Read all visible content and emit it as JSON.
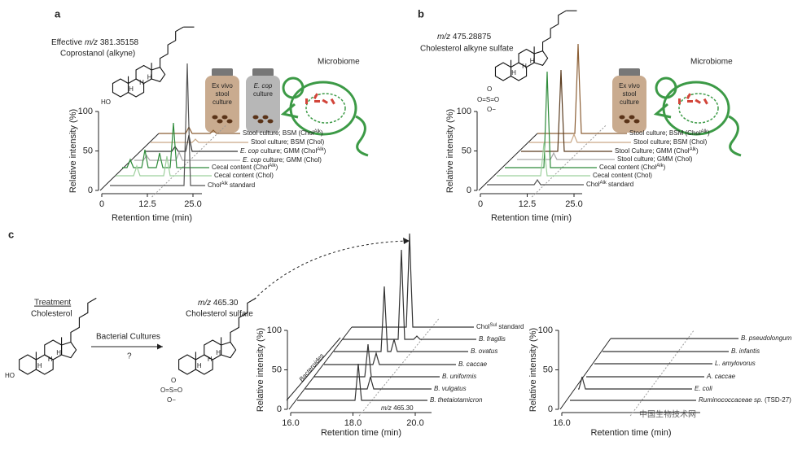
{
  "panel_labels": [
    "a",
    "b",
    "c"
  ],
  "chart_data": [
    {
      "type": "waterfall",
      "title": [
        "Effective ",
        "m/z",
        " 381.35158"
      ],
      "subtitle": "Coprostanol (alkyne)",
      "ylabel": "Relative intensity (%)",
      "xlabel": "Retention time (min)",
      "ylim": [
        0,
        100
      ],
      "xlim": [
        0,
        25
      ],
      "yticks": [
        0,
        50,
        100
      ],
      "xticks": [
        0,
        12.5,
        {
          "value": 25,
          "label": "25.0"
        }
      ],
      "series": [
        {
          "name": [
            {
              "t": "Stool culture; BSM (Chol"
            },
            {
              "t": "Alk",
              "sup": true
            },
            {
              "t": ")"
            }
          ],
          "color": "#8b5e34"
        },
        {
          "name": [
            {
              "t": "Stool culture; BSM (Chol)"
            }
          ],
          "color": "#c9a887"
        },
        {
          "name": [
            {
              "t": "E. cop",
              "i": true
            },
            {
              "t": " culture; GMM (Chol"
            },
            {
              "t": "Alk",
              "sup": true
            },
            {
              "t": ")"
            }
          ],
          "color": "#333333"
        },
        {
          "name": [
            {
              "t": "E. cop",
              "i": true
            },
            {
              "t": " culture; GMM (Chol)"
            }
          ],
          "color": "#a8a8a8"
        },
        {
          "name": [
            {
              "t": "Cecal content (Chol"
            },
            {
              "t": "Alk",
              "sup": true
            },
            {
              "t": ")"
            }
          ],
          "color": "#2e8b3a"
        },
        {
          "name": [
            {
              "t": "Cecal content (Chol)"
            }
          ],
          "color": "#9dd09d"
        },
        {
          "name": [
            {
              "t": "Chol"
            },
            {
              "t": "Alk",
              "sup": true
            },
            {
              "t": " standard"
            }
          ],
          "color": "#555555"
        }
      ]
    },
    {
      "type": "waterfall",
      "title": [
        "",
        "m/z",
        " 475.28875"
      ],
      "subtitle": "Cholesterol alkyne sulfate",
      "ylabel": "Relative intensity (%)",
      "xlabel": "Retention time (min)",
      "ylim": [
        0,
        100
      ],
      "xlim": [
        0,
        25
      ],
      "yticks": [
        0,
        50,
        100
      ],
      "xticks": [
        0,
        12.5,
        {
          "value": 25,
          "label": "25.0"
        }
      ],
      "series": [
        {
          "name": [
            {
              "t": "Stool culture; BSM (Chol"
            },
            {
              "t": "Alk",
              "sup": true
            },
            {
              "t": ")"
            }
          ],
          "color": "#8b5e34"
        },
        {
          "name": [
            {
              "t": "Stool culture; BSM (Chol)"
            }
          ],
          "color": "#c9a887"
        },
        {
          "name": [
            {
              "t": "Stool Culture; GMM (Chol"
            },
            {
              "t": "Alk",
              "sup": true
            },
            {
              "t": ")"
            }
          ],
          "color": "#5a3b1e"
        },
        {
          "name": [
            {
              "t": "Stool culture; GMM (Chol)"
            }
          ],
          "color": "#a8a8a8"
        },
        {
          "name": [
            {
              "t": "Cecal content (Chol"
            },
            {
              "t": "Alk",
              "sup": true
            },
            {
              "t": ")"
            }
          ],
          "color": "#2e8b3a"
        },
        {
          "name": [
            {
              "t": "Cecal content (Chol)"
            }
          ],
          "color": "#9dd09d"
        },
        {
          "name": [
            {
              "t": "Chol"
            },
            {
              "t": "Alk",
              "sup": true
            },
            {
              "t": " standard"
            }
          ],
          "color": "#555555"
        }
      ]
    },
    {
      "type": "waterfall",
      "ylabel": "Relative intensity (%)",
      "xlabel": "Retention time (min)",
      "ylim": [
        0,
        100
      ],
      "xlim": [
        16,
        20
      ],
      "yticks": [
        0,
        50,
        100
      ],
      "xticks": [
        {
          "value": 16,
          "label": "16.0"
        },
        {
          "value": 18,
          "label": "18.0"
        },
        {
          "value": 20,
          "label": "20.0"
        }
      ],
      "group_label": "Bacteroides",
      "marker_label": [
        "m/z",
        " 465.30"
      ],
      "series": [
        {
          "name": [
            {
              "t": "Chol"
            },
            {
              "t": "Sul",
              "sup": true
            },
            {
              "t": " standard"
            }
          ],
          "color": "#333333"
        },
        {
          "name": [
            {
              "t": "B. fragilis",
              "i": true
            }
          ],
          "color": "#333333"
        },
        {
          "name": [
            {
              "t": "B. ovatus",
              "i": true
            }
          ],
          "color": "#333333"
        },
        {
          "name": [
            {
              "t": "B. caccae",
              "i": true
            }
          ],
          "color": "#333333"
        },
        {
          "name": [
            {
              "t": "B. uniformis",
              "i": true
            }
          ],
          "color": "#333333"
        },
        {
          "name": [
            {
              "t": "B. vulgatus",
              "i": true
            }
          ],
          "color": "#333333"
        },
        {
          "name": [
            {
              "t": "B. thetaiotamicron",
              "i": true
            }
          ],
          "color": "#333333"
        }
      ]
    },
    {
      "type": "waterfall",
      "ylabel": "Relative intensity (%)",
      "xlabel": "Retention time (min)",
      "ylim": [
        0,
        100
      ],
      "xlim": [
        16,
        20
      ],
      "yticks": [
        0,
        50,
        100
      ],
      "xticks": [
        {
          "value": 16,
          "label": "16.0"
        }
      ],
      "series": [
        {
          "name": [
            {
              "t": "B. pseudolongum",
              "i": true
            }
          ],
          "color": "#333333"
        },
        {
          "name": [
            {
              "t": "B. infantis",
              "i": true
            }
          ],
          "color": "#333333"
        },
        {
          "name": [
            {
              "t": "L. amylovorus",
              "i": true
            }
          ],
          "color": "#333333"
        },
        {
          "name": [
            {
              "t": "A. caccae",
              "i": true
            }
          ],
          "color": "#333333"
        },
        {
          "name": [
            {
              "t": "E. coli",
              "i": true
            }
          ],
          "color": "#333333"
        },
        {
          "name": [
            {
              "t": "Ruminococcaceae sp.",
              "i": true
            },
            {
              "t": " (TSD-27)"
            }
          ],
          "color": "#333333"
        }
      ]
    }
  ],
  "illustrations": {
    "a_bottles": [
      [
        "Ex vivo",
        "stool",
        "culture"
      ],
      [
        "E. cop",
        "culture"
      ]
    ],
    "a_microbiome": "Microbiome",
    "b_bottle": [
      "Ex vivo",
      "stool",
      "culture"
    ],
    "b_microbiome": "Microbiome"
  },
  "scheme": {
    "treatment": "Treatment",
    "start": "Cholesterol",
    "arrow": "Bacterial Cultures",
    "question": "?",
    "product_mz": [
      "m/z",
      " 465.30"
    ],
    "product": "Cholesterol sulfate"
  },
  "atoms": {
    "hydroxyl": "HO",
    "hydrogen": "H",
    "sulfate": [
      "O",
      "O=S=O",
      "O−"
    ]
  },
  "watermark": "中国生物技术网"
}
